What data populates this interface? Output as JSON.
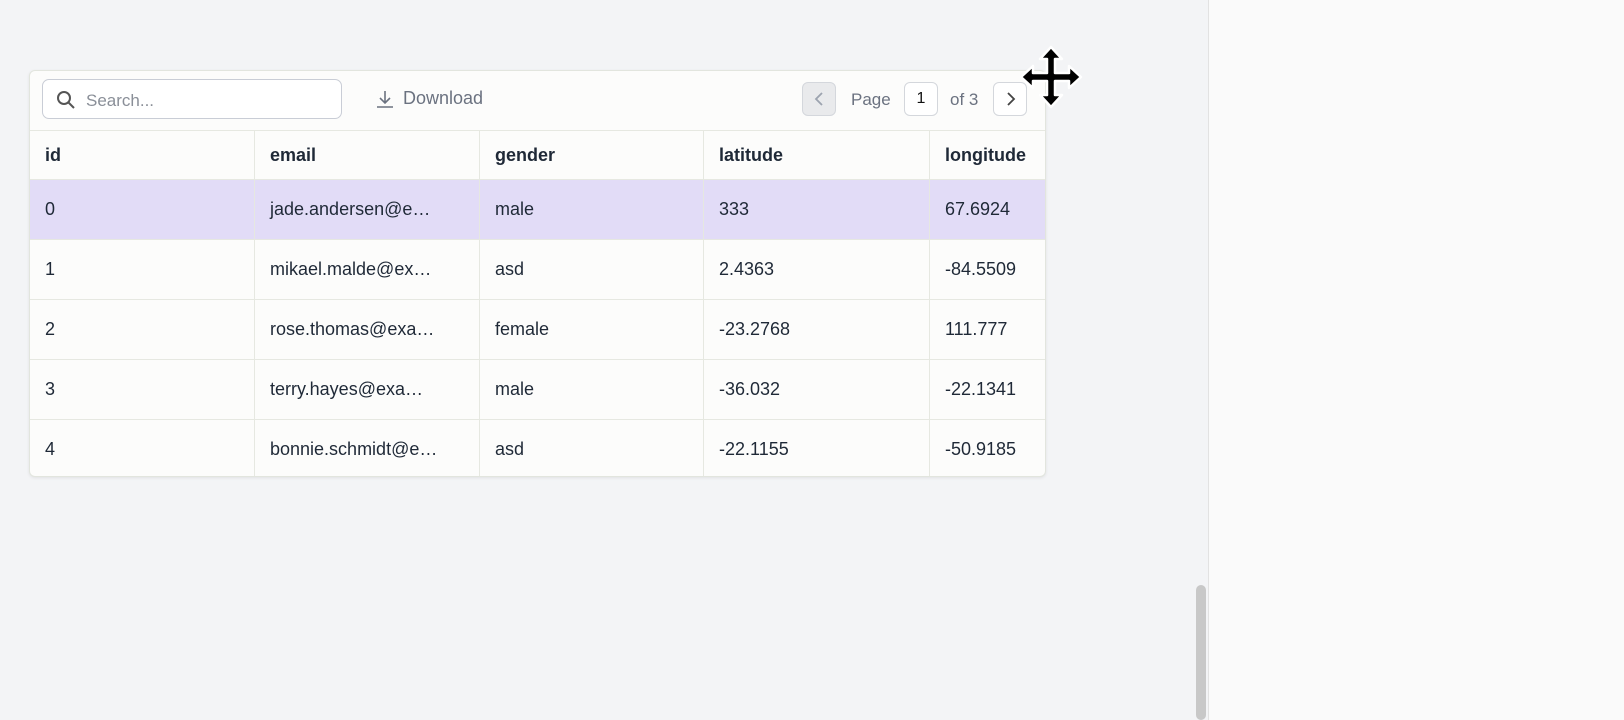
{
  "toolbar": {
    "search_placeholder": "Search...",
    "download": "Download",
    "page_label": "Page",
    "page_current": "1",
    "page_total": "of 3"
  },
  "table": {
    "columns": [
      "id",
      "email",
      "gender",
      "latitude",
      "longitude"
    ],
    "rows": [
      [
        "0",
        "jade.andersen@e…",
        "male",
        "333",
        "67.6924"
      ],
      [
        "1",
        "mikael.malde@ex…",
        "asd",
        "2.4363",
        "-84.5509"
      ],
      [
        "2",
        "rose.thomas@exa…",
        "female",
        "-23.2768",
        "111.777"
      ],
      [
        "3",
        "terry.hayes@exa…",
        "male",
        "-36.032",
        "-22.1341"
      ],
      [
        "4",
        "bonnie.schmidt@e…",
        "asd",
        "-22.1155",
        "-50.9185"
      ]
    ]
  }
}
